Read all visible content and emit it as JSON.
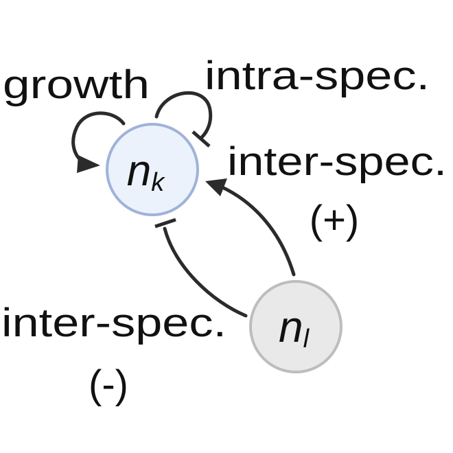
{
  "nodes": {
    "nk": {
      "base": "n",
      "sub": "k",
      "fill": "#ecf2fc",
      "stroke": "#9fb3d9"
    },
    "nl": {
      "base": "n",
      "sub": "l",
      "fill": "#e9e9e9",
      "stroke": "#bdbdbd"
    }
  },
  "labels": {
    "growth": "growth",
    "intra": "intra-spec.",
    "inter_pos": "inter-spec.",
    "inter_pos_sign": "(+)",
    "inter_neg": "inter-spec.",
    "inter_neg_sign": "(-)"
  },
  "edge_color": "#2b2b2b"
}
